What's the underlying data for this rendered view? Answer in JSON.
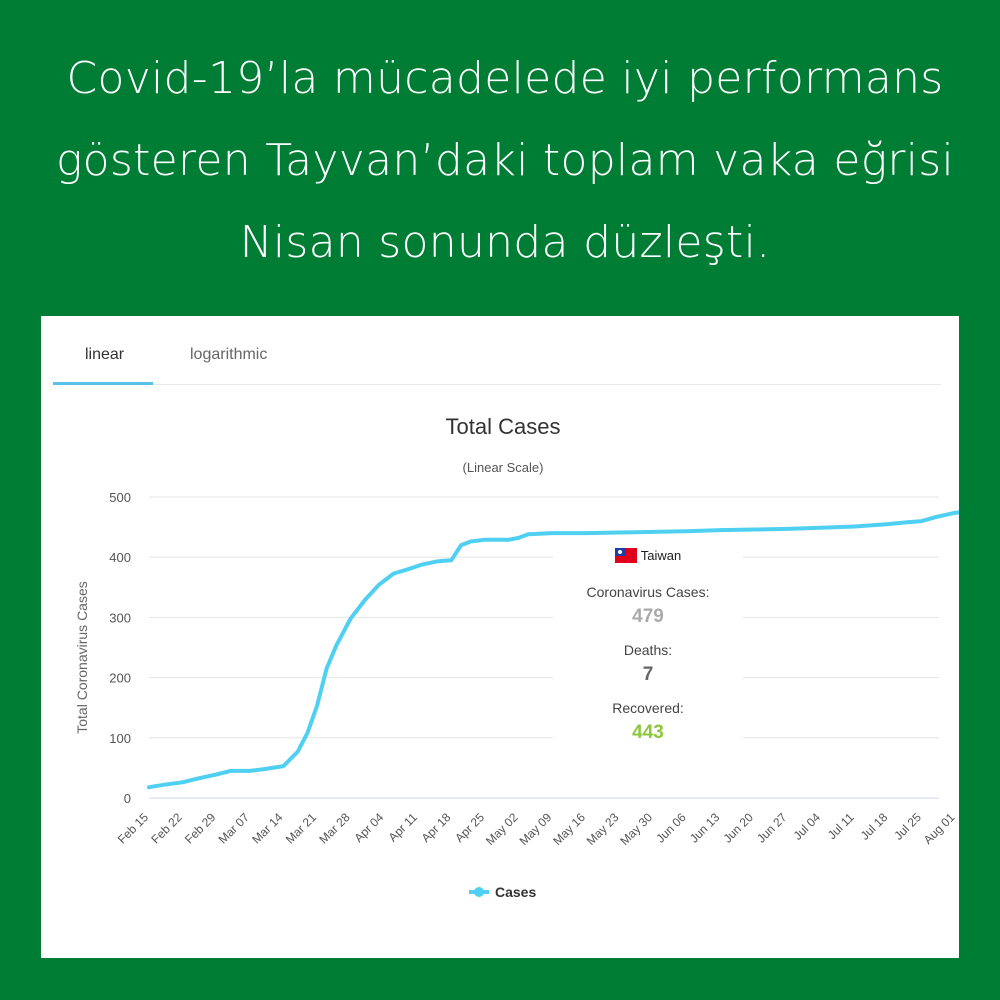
{
  "headline": {
    "line1": "Covid-19’la mücadelede iyi performans",
    "line2": "gösteren Tayvan’daki toplam vaka eğrisi",
    "line3": "Nisan sonunda düzleşti."
  },
  "tabs": [
    {
      "label": "linear",
      "active": true
    },
    {
      "label": "logarithmic",
      "active": false
    }
  ],
  "tooltip": {
    "country": "Taiwan",
    "cases_label": "Coronavirus Cases:",
    "cases_value": "479",
    "deaths_label": "Deaths:",
    "deaths_value": "7",
    "recovered_label": "Recovered:",
    "recovered_value": "443",
    "colors": {
      "cases": "#aaaaaa",
      "deaths": "#666666",
      "recovered": "#8dc63f"
    }
  },
  "colors": {
    "background": "#007d35",
    "line": "#4fd0f2",
    "accent": "#5bc0e8"
  },
  "chart_data": {
    "type": "line",
    "title": "Total Cases",
    "subtitle": "(Linear Scale)",
    "ylabel": "Total Coronavirus Cases",
    "xlabel": "",
    "ylim": [
      0,
      500
    ],
    "yticks": [
      0,
      100,
      200,
      300,
      400,
      500
    ],
    "grid": true,
    "legend_position": "bottom-center",
    "x_tick_labels": [
      "Feb 15",
      "Feb 22",
      "Feb 29",
      "Mar 07",
      "Mar 14",
      "Mar 21",
      "Mar 28",
      "Apr 04",
      "Apr 11",
      "Apr 18",
      "Apr 25",
      "May 02",
      "May 09",
      "May 16",
      "May 23",
      "May 30",
      "Jun 06",
      "Jun 13",
      "Jun 20",
      "Jun 27",
      "Jul 04",
      "Jul 11",
      "Jul 18",
      "Jul 25",
      "Aug 01"
    ],
    "series": [
      {
        "name": "Cases",
        "x": [
          "Feb 15",
          "Feb 18",
          "Feb 22",
          "Feb 25",
          "Feb 29",
          "Mar 03",
          "Mar 07",
          "Mar 10",
          "Mar 14",
          "Mar 17",
          "Mar 19",
          "Mar 21",
          "Mar 23",
          "Mar 25",
          "Mar 28",
          "Mar 31",
          "Apr 03",
          "Apr 06",
          "Apr 09",
          "Apr 12",
          "Apr 15",
          "Apr 18",
          "Apr 20",
          "Apr 22",
          "Apr 25",
          "Apr 30",
          "May 02",
          "May 04",
          "May 09",
          "May 16",
          "May 23",
          "May 30",
          "Jun 06",
          "Jun 13",
          "Jun 20",
          "Jun 27",
          "Jul 04",
          "Jul 11",
          "Jul 18",
          "Jul 22",
          "Jul 25",
          "Jul 28",
          "Aug 01",
          "Aug 04",
          "Aug 08"
        ],
        "values": [
          18,
          22,
          26,
          32,
          39,
          45,
          45,
          48,
          53,
          77,
          108,
          153,
          215,
          253,
          298,
          329,
          355,
          373,
          380,
          388,
          393,
          395,
          420,
          426,
          429,
          429,
          432,
          438,
          440,
          440,
          441,
          442,
          443,
          445,
          446,
          447,
          449,
          451,
          455,
          458,
          460,
          467,
          474,
          476,
          477
        ]
      }
    ]
  }
}
